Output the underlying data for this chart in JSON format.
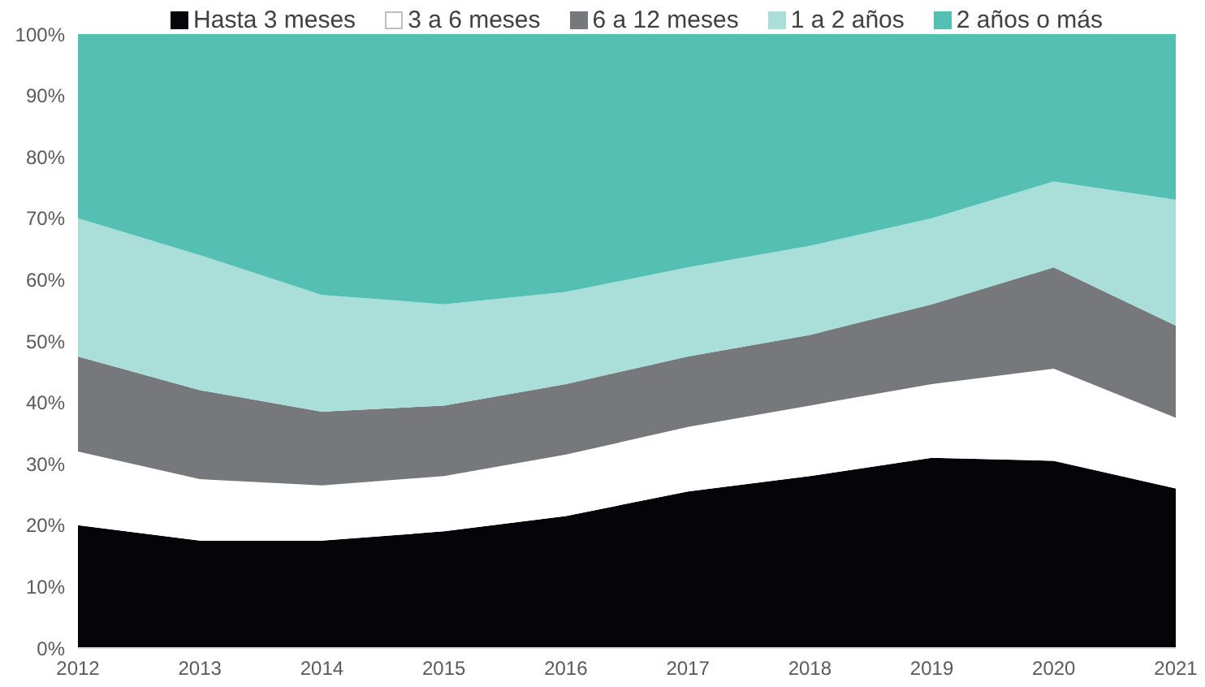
{
  "chart_data": {
    "type": "area",
    "stacked": true,
    "legend": "top",
    "grid": false,
    "x": [
      2012,
      2013,
      2014,
      2015,
      2016,
      2017,
      2018,
      2019,
      2020,
      2021
    ],
    "xlim": [
      2012,
      2021
    ],
    "xticks": [
      2012,
      2013,
      2014,
      2015,
      2016,
      2017,
      2018,
      2019,
      2020,
      2021
    ],
    "ylim": [
      0,
      100
    ],
    "yticks": [
      {
        "value": 0,
        "label": "0%"
      },
      {
        "value": 10,
        "label": "10%"
      },
      {
        "value": 20,
        "label": "20%"
      },
      {
        "value": 30,
        "label": "30%"
      },
      {
        "value": 40,
        "label": "40%"
      },
      {
        "value": 50,
        "label": "50%"
      },
      {
        "value": 60,
        "label": "60%"
      },
      {
        "value": 70,
        "label": "70%"
      },
      {
        "value": 80,
        "label": "80%"
      },
      {
        "value": 90,
        "label": "90%"
      },
      {
        "value": 100,
        "label": "100%"
      }
    ],
    "series": [
      {
        "name": "Hasta 3 meses",
        "color": "#050408",
        "values": [
          20,
          17.5,
          17.5,
          19,
          21.5,
          25.5,
          28,
          31,
          30.5,
          26
        ]
      },
      {
        "name": "3 a 6 meses",
        "color": "#ffffff",
        "values": [
          12,
          10,
          9,
          9,
          10,
          10.5,
          11.5,
          12,
          15,
          11.5
        ]
      },
      {
        "name": "6 a 12 meses",
        "color": "#76787c",
        "values": [
          15.5,
          14.5,
          12,
          11.5,
          11.5,
          11.5,
          11.5,
          13,
          16.5,
          15
        ]
      },
      {
        "name": "1 a 2 años",
        "color": "#aadfd9",
        "values": [
          22.5,
          22,
          19,
          16.5,
          15,
          14.5,
          14.5,
          14,
          14,
          20.5
        ]
      },
      {
        "name": "2 años o más",
        "color": "#56bfb3",
        "values": [
          30,
          36,
          42.5,
          44,
          42,
          38,
          34.5,
          30,
          24,
          27
        ]
      }
    ]
  }
}
